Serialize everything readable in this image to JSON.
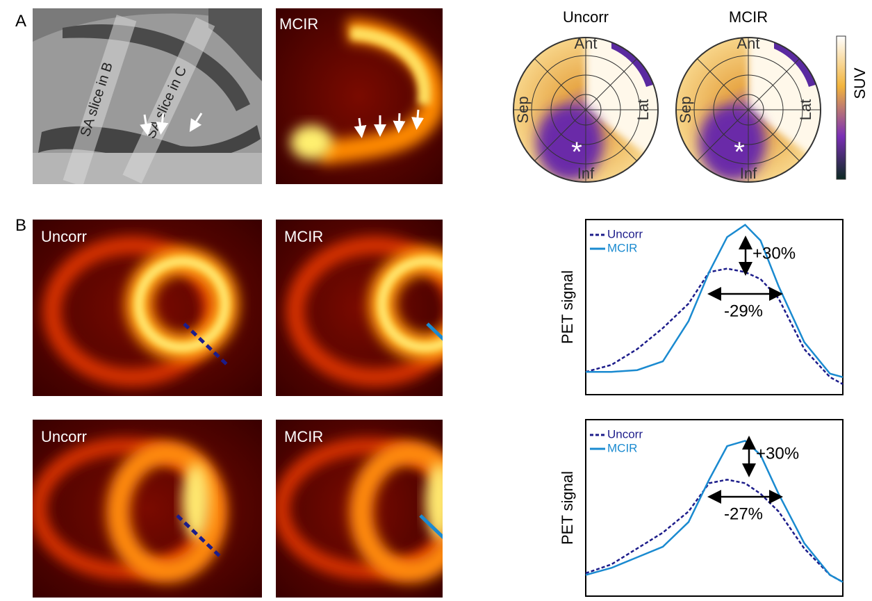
{
  "panel_a": {
    "label": "A",
    "ct_image": {
      "slice_labels": [
        "SA slice in B",
        "SA slice in C"
      ]
    },
    "mcir_image": {
      "label": "MCIR"
    },
    "polar_maps": [
      {
        "title": "Uncorr",
        "ant": "Ant",
        "sep": "Sep",
        "lat": "Lat",
        "inf": "Inf",
        "marker": "*"
      },
      {
        "title": "MCIR",
        "ant": "Ant",
        "sep": "Sep",
        "lat": "Lat",
        "inf": "Inf",
        "marker": "*"
      }
    ],
    "colorbar": {
      "label": "SUV"
    }
  },
  "panel_b": {
    "label": "B",
    "rows": [
      {
        "images": [
          "Uncorr",
          "MCIR"
        ],
        "profile": {
          "ylabel": "PET signal",
          "peak_change": "+30%",
          "width_change": "-29%",
          "xlim": [
            0,
            100
          ],
          "ylim": [
            0,
            1
          ],
          "x": [
            0,
            10,
            20,
            30,
            40,
            48,
            55,
            62,
            68,
            75,
            85,
            95,
            100
          ],
          "series": [
            {
              "name": "Uncorr",
              "color": "#1c1c8a",
              "dashed": true,
              "values": [
                0.13,
                0.17,
                0.26,
                0.38,
                0.52,
                0.7,
                0.72,
                0.7,
                0.66,
                0.55,
                0.26,
                0.1,
                0.06
              ]
            },
            {
              "name": "MCIR",
              "color": "#1a8ad0",
              "dashed": false,
              "values": [
                0.13,
                0.13,
                0.14,
                0.19,
                0.42,
                0.7,
                0.9,
                0.97,
                0.88,
                0.62,
                0.3,
                0.12,
                0.1
              ]
            }
          ]
        }
      },
      {
        "images": [
          "Uncorr",
          "MCIR"
        ],
        "profile": {
          "ylabel": "PET signal",
          "peak_change": "+30%",
          "width_change": "-27%",
          "xlim": [
            0,
            100
          ],
          "ylim": [
            0,
            1
          ],
          "x": [
            0,
            10,
            20,
            30,
            40,
            48,
            55,
            62,
            68,
            75,
            85,
            95,
            100
          ],
          "series": [
            {
              "name": "Uncorr",
              "color": "#1c1c8a",
              "dashed": true,
              "values": [
                0.13,
                0.18,
                0.27,
                0.36,
                0.48,
                0.64,
                0.66,
                0.64,
                0.58,
                0.48,
                0.27,
                0.12,
                0.08
              ]
            },
            {
              "name": "MCIR",
              "color": "#1a8ad0",
              "dashed": false,
              "values": [
                0.12,
                0.16,
                0.22,
                0.28,
                0.42,
                0.66,
                0.85,
                0.88,
                0.8,
                0.58,
                0.3,
                0.12,
                0.08
              ]
            }
          ]
        }
      }
    ]
  }
}
